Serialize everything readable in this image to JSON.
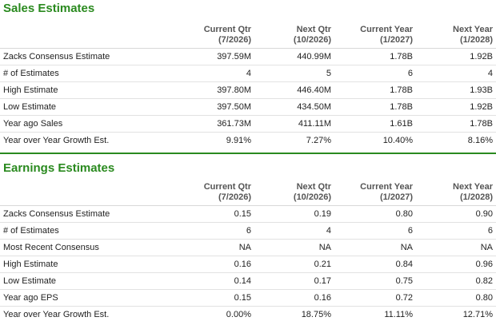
{
  "sales": {
    "title": "Sales Estimates",
    "columns": [
      {
        "name": "Current Qtr",
        "period": "(7/2026)"
      },
      {
        "name": "Next Qtr",
        "period": "(10/2026)"
      },
      {
        "name": "Current Year",
        "period": "(1/2027)"
      },
      {
        "name": "Next Year",
        "period": "(1/2028)"
      }
    ],
    "rows": [
      {
        "label": "Zacks Consensus Estimate",
        "values": [
          "397.59M",
          "440.99M",
          "1.78B",
          "1.92B"
        ]
      },
      {
        "label": "# of Estimates",
        "values": [
          "4",
          "5",
          "6",
          "4"
        ]
      },
      {
        "label": "High Estimate",
        "values": [
          "397.80M",
          "446.40M",
          "1.78B",
          "1.93B"
        ]
      },
      {
        "label": "Low Estimate",
        "values": [
          "397.50M",
          "434.50M",
          "1.78B",
          "1.92B"
        ]
      },
      {
        "label": "Year ago Sales",
        "values": [
          "361.73M",
          "411.11M",
          "1.61B",
          "1.78B"
        ]
      },
      {
        "label": "Year over Year Growth Est.",
        "values": [
          "9.91%",
          "7.27%",
          "10.40%",
          "8.16%"
        ]
      }
    ]
  },
  "earnings": {
    "title": "Earnings Estimates",
    "columns": [
      {
        "name": "Current Qtr",
        "period": "(7/2026)"
      },
      {
        "name": "Next Qtr",
        "period": "(10/2026)"
      },
      {
        "name": "Current Year",
        "period": "(1/2027)"
      },
      {
        "name": "Next Year",
        "period": "(1/2028)"
      }
    ],
    "rows": [
      {
        "label": "Zacks Consensus Estimate",
        "values": [
          "0.15",
          "0.19",
          "0.80",
          "0.90"
        ]
      },
      {
        "label": "# of Estimates",
        "values": [
          "6",
          "4",
          "6",
          "6"
        ]
      },
      {
        "label": "Most Recent Consensus",
        "values": [
          "NA",
          "NA",
          "NA",
          "NA"
        ]
      },
      {
        "label": "High Estimate",
        "values": [
          "0.16",
          "0.21",
          "0.84",
          "0.96"
        ]
      },
      {
        "label": "Low Estimate",
        "values": [
          "0.14",
          "0.17",
          "0.75",
          "0.82"
        ]
      },
      {
        "label": "Year ago EPS",
        "values": [
          "0.15",
          "0.16",
          "0.72",
          "0.80"
        ]
      },
      {
        "label": "Year over Year Growth Est.",
        "values": [
          "0.00%",
          "18.75%",
          "11.11%",
          "12.71%"
        ]
      }
    ]
  },
  "colors": {
    "section_title": "#2a8a1f",
    "divider": "#2a8a1f",
    "row_border": "#e2e2e2"
  }
}
